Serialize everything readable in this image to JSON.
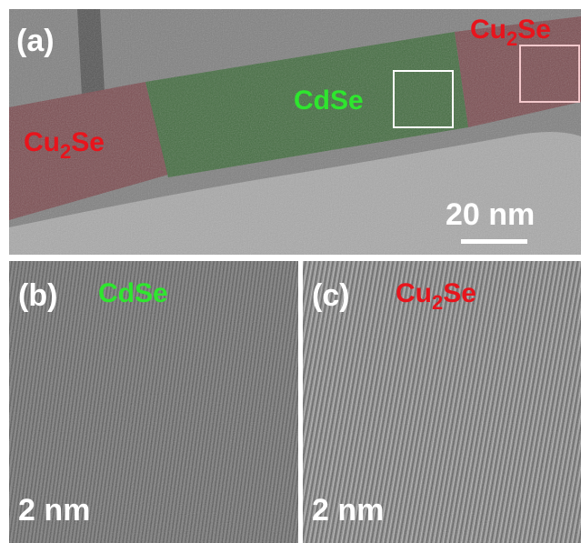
{
  "panel_a": {
    "label": "(a)",
    "cu2se_left": {
      "base": "Cu",
      "sub": "2",
      "rest": "Se"
    },
    "cu2se_right": {
      "base": "Cu",
      "sub": "2",
      "rest": "Se"
    },
    "cdse": "CdSe",
    "scale_bar": "20 nm"
  },
  "panel_b": {
    "label": "(b)",
    "material": "CdSe",
    "scale_bar": "2 nm"
  },
  "panel_c": {
    "label": "(c)",
    "material": {
      "base": "Cu",
      "sub": "2",
      "rest": "Se"
    },
    "scale_bar": "2 nm"
  }
}
